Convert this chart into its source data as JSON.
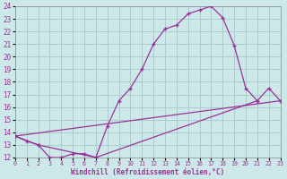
{
  "xlabel": "Windchill (Refroidissement éolien,°C)",
  "xlim": [
    0,
    23
  ],
  "ylim": [
    12,
    24
  ],
  "xticks": [
    0,
    1,
    2,
    3,
    4,
    5,
    6,
    7,
    8,
    9,
    10,
    11,
    12,
    13,
    14,
    15,
    16,
    17,
    18,
    19,
    20,
    21,
    22,
    23
  ],
  "yticks": [
    12,
    13,
    14,
    15,
    16,
    17,
    18,
    19,
    20,
    21,
    22,
    23,
    24
  ],
  "bg_color": "#cce8e8",
  "grid_color": "#aacccc",
  "line_color": "#993399",
  "line1_x": [
    0,
    1,
    2,
    7,
    8,
    9,
    10,
    11,
    12,
    13,
    14,
    15,
    16,
    17,
    18,
    19,
    20,
    21
  ],
  "line1_y": [
    13.7,
    13.3,
    13.0,
    12.0,
    14.5,
    16.5,
    17.5,
    19.0,
    21.0,
    22.2,
    22.5,
    23.4,
    23.7,
    24.0,
    23.1,
    20.9,
    17.5,
    16.5
  ],
  "line2_x": [
    0,
    23
  ],
  "line2_y": [
    13.7,
    16.5
  ],
  "line3_x": [
    0,
    2,
    3,
    4,
    5,
    6,
    7,
    21,
    22,
    23
  ],
  "line3_y": [
    13.7,
    13.0,
    12.0,
    12.0,
    12.3,
    12.3,
    12.0,
    16.5,
    17.5,
    16.5
  ]
}
